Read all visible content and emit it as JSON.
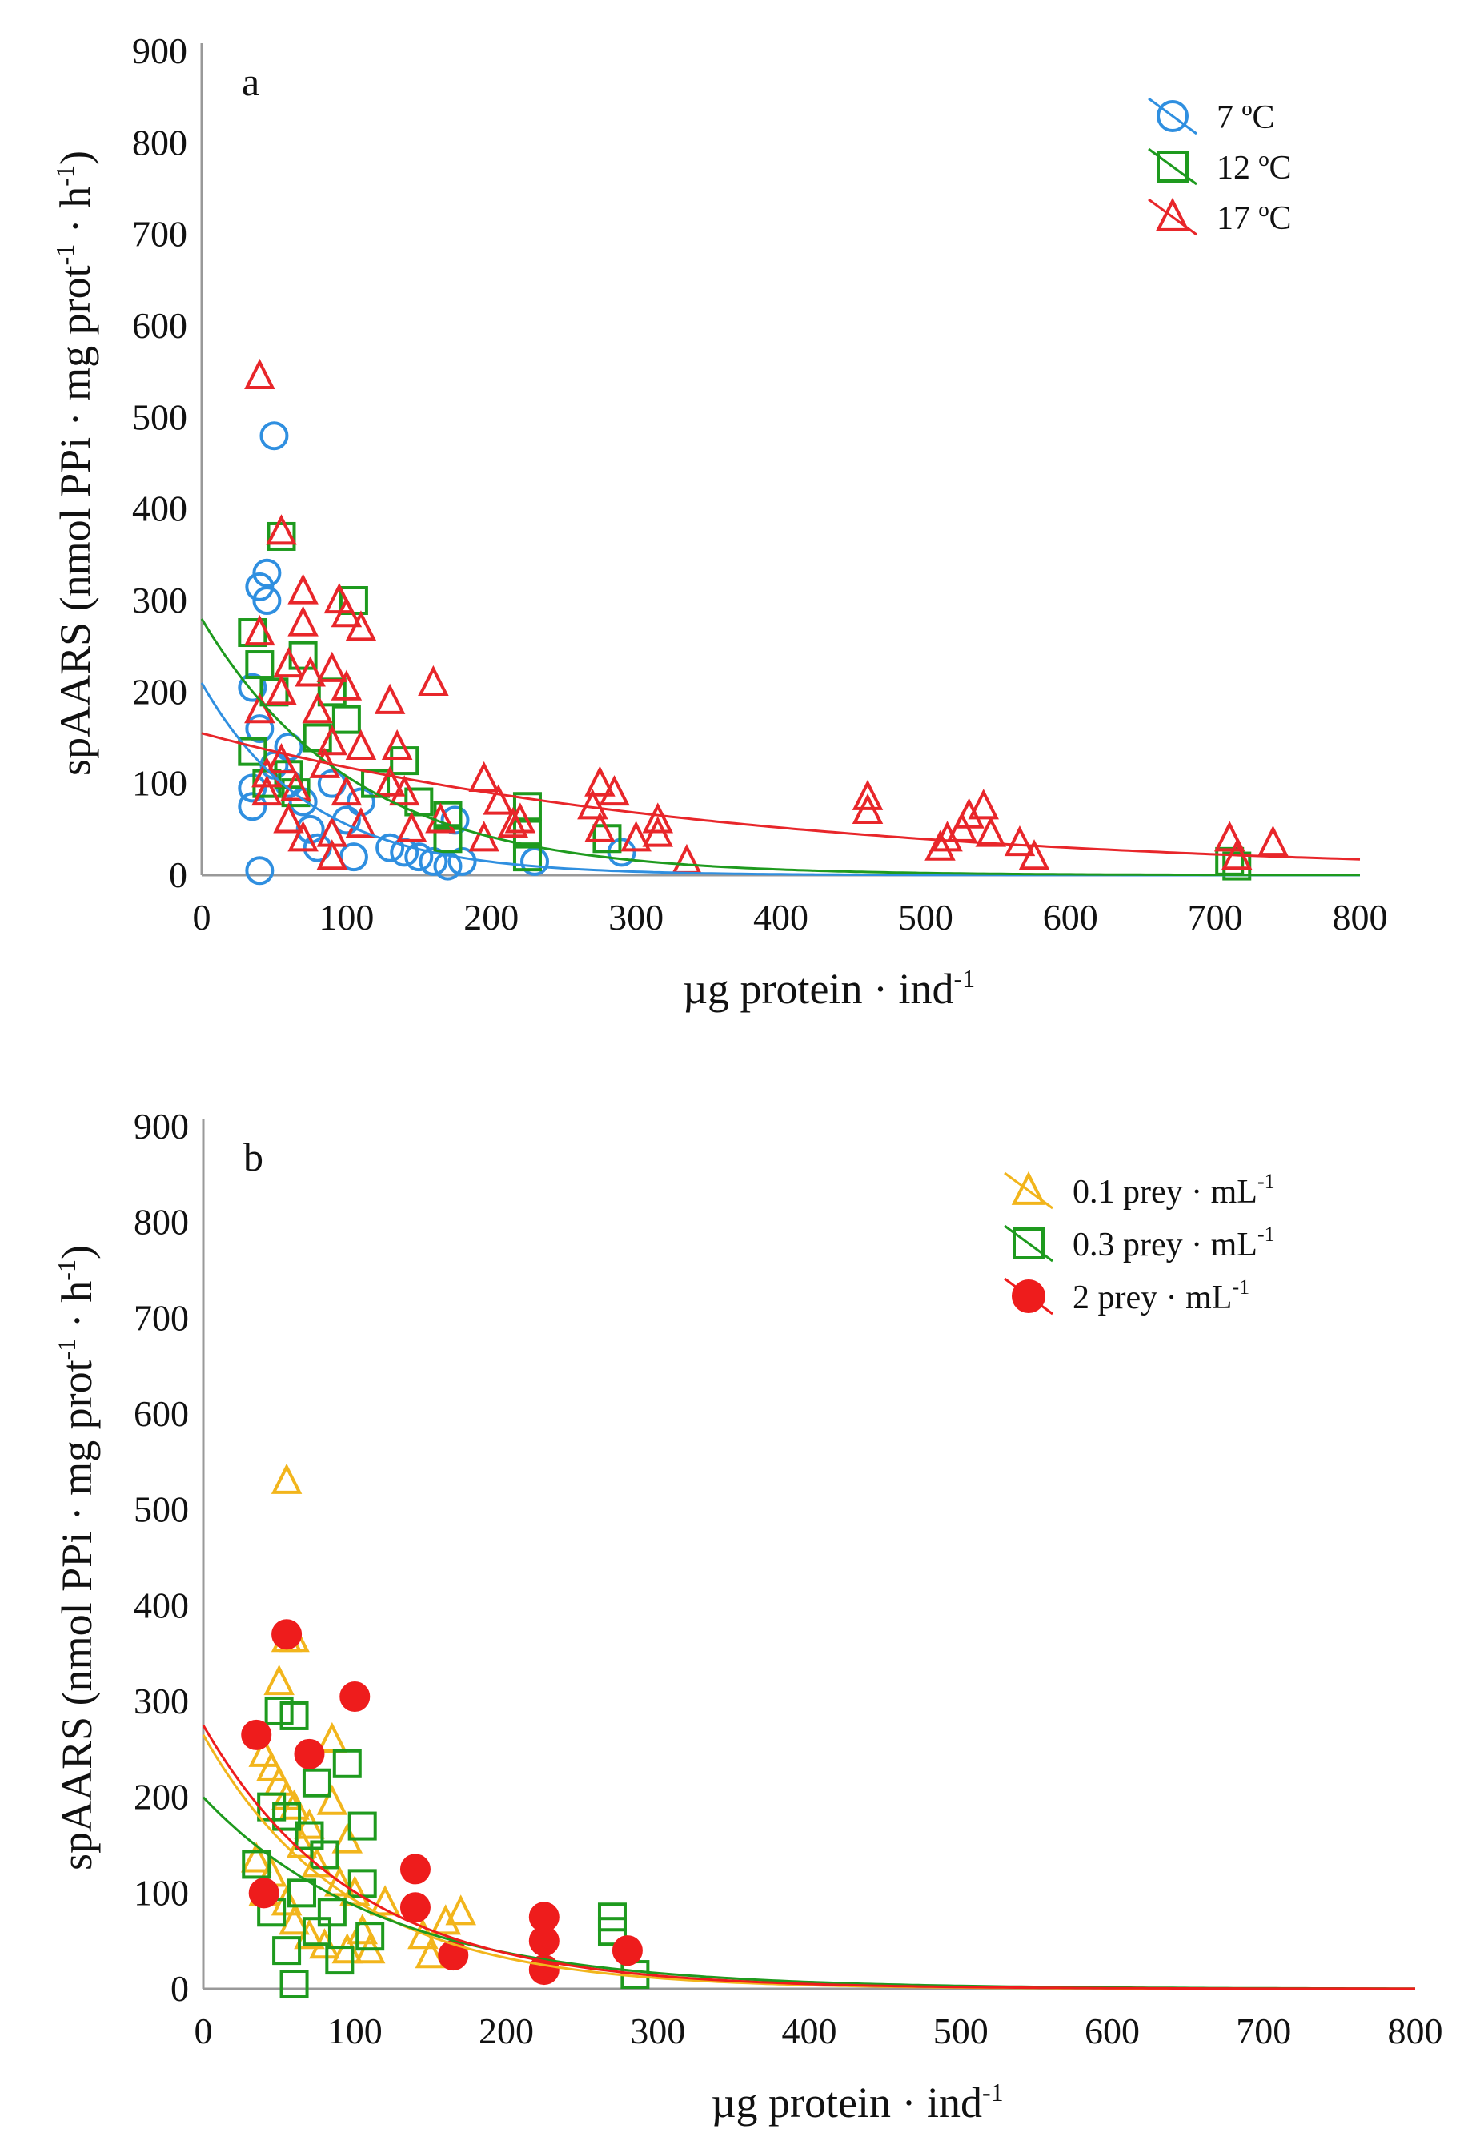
{
  "chart_data": [
    {
      "type": "scatter",
      "panel_label": "a",
      "xlabel": "µg protein · ind",
      "xlabel_sup": "-1",
      "ylabel": "spAARS (nmol PPi · mg prot",
      "ylabel_sup1": "-1",
      "ylabel_mid": " · h",
      "ylabel_sup2": "-1",
      "ylabel_end": ")",
      "xlim": [
        0,
        800
      ],
      "ylim": [
        0,
        900
      ],
      "xticks": [
        "0",
        "100",
        "200",
        "300",
        "400",
        "500",
        "600",
        "700",
        "800"
      ],
      "yticks": [
        "0",
        "100",
        "200",
        "300",
        "400",
        "500",
        "600",
        "700",
        "800",
        "900"
      ],
      "legend_position": "top-right",
      "series": [
        {
          "name": "7 ºC",
          "marker": "circle",
          "color": "#2f8fe0",
          "fit": {
            "a": 210,
            "b": 75
          },
          "points": [
            [
              40,
              5
            ],
            [
              50,
              480
            ],
            [
              40,
              315
            ],
            [
              45,
              330
            ],
            [
              45,
              300
            ],
            [
              35,
              205
            ],
            [
              35,
              75
            ],
            [
              35,
              95
            ],
            [
              40,
              160
            ],
            [
              60,
              100
            ],
            [
              70,
              80
            ],
            [
              75,
              50
            ],
            [
              80,
              30
            ],
            [
              90,
              100
            ],
            [
              100,
              60
            ],
            [
              105,
              20
            ],
            [
              110,
              80
            ],
            [
              130,
              30
            ],
            [
              140,
              25
            ],
            [
              150,
              20
            ],
            [
              160,
              15
            ],
            [
              170,
              10
            ],
            [
              175,
              60
            ],
            [
              180,
              15
            ],
            [
              290,
              25
            ],
            [
              230,
              15
            ],
            [
              60,
              140
            ],
            [
              50,
              120
            ]
          ]
        },
        {
          "name": "12 ºC",
          "marker": "square",
          "color": "#1e9a1e",
          "fit": {
            "a": 280,
            "b": 105
          },
          "points": [
            [
              35,
              265
            ],
            [
              40,
              230
            ],
            [
              35,
              135
            ],
            [
              55,
              370
            ],
            [
              105,
              300
            ],
            [
              70,
              240
            ],
            [
              100,
              170
            ],
            [
              90,
              200
            ],
            [
              60,
              110
            ],
            [
              65,
              90
            ],
            [
              140,
              125
            ],
            [
              150,
              80
            ],
            [
              170,
              40
            ],
            [
              170,
              65
            ],
            [
              225,
              75
            ],
            [
              225,
              20
            ],
            [
              225,
              45
            ],
            [
              280,
              40
            ],
            [
              50,
              200
            ],
            [
              80,
              150
            ],
            [
              120,
              100
            ],
            [
              45,
              100
            ],
            [
              710,
              15
            ],
            [
              715,
              10
            ]
          ]
        },
        {
          "name": "17 ºC",
          "marker": "triangle",
          "color": "#e8262a",
          "fit": {
            "a": 155,
            "b": 365
          },
          "points": [
            [
              40,
              545
            ],
            [
              55,
              375
            ],
            [
              70,
              310
            ],
            [
              95,
              300
            ],
            [
              100,
              285
            ],
            [
              110,
              270
            ],
            [
              40,
              265
            ],
            [
              70,
              275
            ],
            [
              60,
              230
            ],
            [
              75,
              220
            ],
            [
              90,
              225
            ],
            [
              100,
              205
            ],
            [
              130,
              190
            ],
            [
              160,
              210
            ],
            [
              40,
              180
            ],
            [
              55,
              200
            ],
            [
              80,
              180
            ],
            [
              90,
              145
            ],
            [
              110,
              140
            ],
            [
              135,
              140
            ],
            [
              55,
              125
            ],
            [
              85,
              120
            ],
            [
              45,
              110
            ],
            [
              65,
              95
            ],
            [
              100,
              90
            ],
            [
              130,
              100
            ],
            [
              140,
              90
            ],
            [
              60,
              60
            ],
            [
              90,
              45
            ],
            [
              110,
              55
            ],
            [
              70,
              40
            ],
            [
              90,
              20
            ],
            [
              145,
              50
            ],
            [
              165,
              60
            ],
            [
              195,
              105
            ],
            [
              205,
              80
            ],
            [
              215,
              55
            ],
            [
              220,
              60
            ],
            [
              195,
              40
            ],
            [
              270,
              75
            ],
            [
              275,
              100
            ],
            [
              285,
              90
            ],
            [
              275,
              50
            ],
            [
              300,
              40
            ],
            [
              315,
              60
            ],
            [
              315,
              45
            ],
            [
              335,
              15
            ],
            [
              460,
              85
            ],
            [
              460,
              70
            ],
            [
              510,
              30
            ],
            [
              515,
              40
            ],
            [
              525,
              50
            ],
            [
              530,
              65
            ],
            [
              540,
              75
            ],
            [
              545,
              45
            ],
            [
              565,
              35
            ],
            [
              575,
              20
            ],
            [
              710,
              40
            ],
            [
              715,
              20
            ],
            [
              740,
              35
            ],
            [
              45,
              90
            ]
          ]
        }
      ]
    },
    {
      "type": "scatter",
      "panel_label": "b",
      "xlabel": "µg protein · ind",
      "xlabel_sup": "-1",
      "ylabel": "spAARS (nmol PPi · mg prot",
      "ylabel_sup1": "-1",
      "ylabel_mid": " · h",
      "ylabel_sup2": "-1",
      "ylabel_end": ")",
      "xlim": [
        0,
        800
      ],
      "ylim": [
        0,
        900
      ],
      "xticks": [
        "0",
        "100",
        "200",
        "300",
        "400",
        "500",
        "600",
        "700",
        "800"
      ],
      "yticks": [
        "0",
        "100",
        "200",
        "300",
        "400",
        "500",
        "600",
        "700",
        "800",
        "900"
      ],
      "legend_position": "top-right",
      "series": [
        {
          "name": "0.1 prey · mL",
          "name_sup": "-1",
          "marker": "triangle",
          "color": "#f2b51c",
          "fit": {
            "a": 265,
            "b": 95
          },
          "points": [
            [
              55,
              530
            ],
            [
              55,
              365
            ],
            [
              60,
              365
            ],
            [
              50,
              320
            ],
            [
              85,
              260
            ],
            [
              40,
              245
            ],
            [
              45,
              230
            ],
            [
              50,
              215
            ],
            [
              55,
              200
            ],
            [
              60,
              190
            ],
            [
              70,
              170
            ],
            [
              85,
              195
            ],
            [
              95,
              155
            ],
            [
              65,
              150
            ],
            [
              75,
              130
            ],
            [
              90,
              110
            ],
            [
              45,
              120
            ],
            [
              35,
              135
            ],
            [
              40,
              100
            ],
            [
              55,
              90
            ],
            [
              60,
              70
            ],
            [
              70,
              55
            ],
            [
              80,
              45
            ],
            [
              95,
              40
            ],
            [
              105,
              60
            ],
            [
              110,
              40
            ],
            [
              120,
              90
            ],
            [
              145,
              55
            ],
            [
              150,
              35
            ],
            [
              170,
              80
            ],
            [
              160,
              70
            ],
            [
              100,
              100
            ]
          ]
        },
        {
          "name": "0.3 prey · mL",
          "name_sup": "-1",
          "marker": "square",
          "color": "#1e9a1e",
          "fit": {
            "a": 200,
            "b": 120
          },
          "points": [
            [
              50,
              290
            ],
            [
              60,
              285
            ],
            [
              75,
              215
            ],
            [
              95,
              235
            ],
            [
              105,
              170
            ],
            [
              55,
              180
            ],
            [
              70,
              160
            ],
            [
              80,
              140
            ],
            [
              45,
              190
            ],
            [
              35,
              130
            ],
            [
              45,
              80
            ],
            [
              55,
              40
            ],
            [
              60,
              5
            ],
            [
              75,
              60
            ],
            [
              90,
              30
            ],
            [
              110,
              55
            ],
            [
              105,
              110
            ],
            [
              270,
              75
            ],
            [
              270,
              60
            ],
            [
              285,
              15
            ],
            [
              65,
              100
            ],
            [
              85,
              80
            ]
          ]
        },
        {
          "name": "2 prey · mL",
          "name_sup": "-1",
          "marker": "filled-circle",
          "color": "#ee1c1c",
          "fit": {
            "a": 275,
            "b": 100
          },
          "points": [
            [
              35,
              265
            ],
            [
              55,
              370
            ],
            [
              70,
              245
            ],
            [
              100,
              305
            ],
            [
              140,
              125
            ],
            [
              140,
              85
            ],
            [
              165,
              35
            ],
            [
              225,
              75
            ],
            [
              225,
              50
            ],
            [
              225,
              20
            ],
            [
              280,
              40
            ],
            [
              40,
              100
            ]
          ]
        }
      ]
    }
  ]
}
